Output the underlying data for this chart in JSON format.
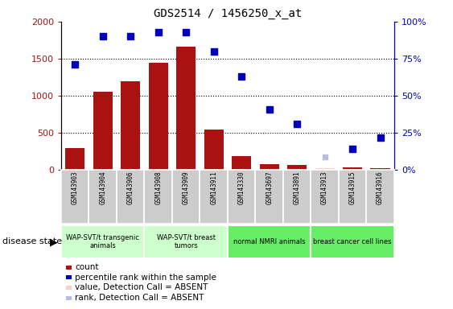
{
  "title": "GDS2514 / 1456250_x_at",
  "samples": [
    "GSM143903",
    "GSM143904",
    "GSM143906",
    "GSM143908",
    "GSM143909",
    "GSM143911",
    "GSM143330",
    "GSM143697",
    "GSM143891",
    "GSM143913",
    "GSM143915",
    "GSM143916"
  ],
  "counts": [
    300,
    1060,
    1200,
    1440,
    1660,
    550,
    190,
    75,
    65,
    null,
    30,
    20
  ],
  "ranks": [
    71,
    90,
    90,
    93,
    93,
    80,
    63,
    41,
    31,
    null,
    14,
    22
  ],
  "absent_counts": [
    null,
    null,
    null,
    null,
    null,
    null,
    null,
    null,
    null,
    19,
    null,
    null
  ],
  "absent_ranks": [
    null,
    null,
    null,
    null,
    null,
    null,
    null,
    null,
    null,
    9,
    null,
    null
  ],
  "groups": [
    {
      "label": "WAP-SVT/t transgenic\nanimals",
      "start": 0,
      "end": 3,
      "color": "#ccffcc"
    },
    {
      "label": "WAP-SVT/t breast\ntumors",
      "start": 3,
      "end": 6,
      "color": "#ccffcc"
    },
    {
      "label": "normal NMRI animals",
      "start": 6,
      "end": 9,
      "color": "#77ee77"
    },
    {
      "label": "breast cancer cell lines",
      "start": 9,
      "end": 12,
      "color": "#77ee77"
    }
  ],
  "bar_color": "#aa1111",
  "dot_color": "#0000bb",
  "absent_bar_color": "#ffcccc",
  "absent_dot_color": "#bbbbdd",
  "ylim_left": [
    0,
    2000
  ],
  "ylim_right": [
    0,
    100
  ],
  "yticks_left": [
    0,
    500,
    1000,
    1500,
    2000
  ],
  "ytick_labels_left": [
    "0",
    "500",
    "1000",
    "1500",
    "2000"
  ],
  "yticks_right": [
    0,
    25,
    50,
    75,
    100
  ],
  "ytick_labels_right": [
    "0%",
    "25%",
    "50%",
    "75%",
    "100%"
  ],
  "sample_bg_color": "#cccccc",
  "group1_color": "#ccffcc",
  "group2_color": "#66ee66"
}
